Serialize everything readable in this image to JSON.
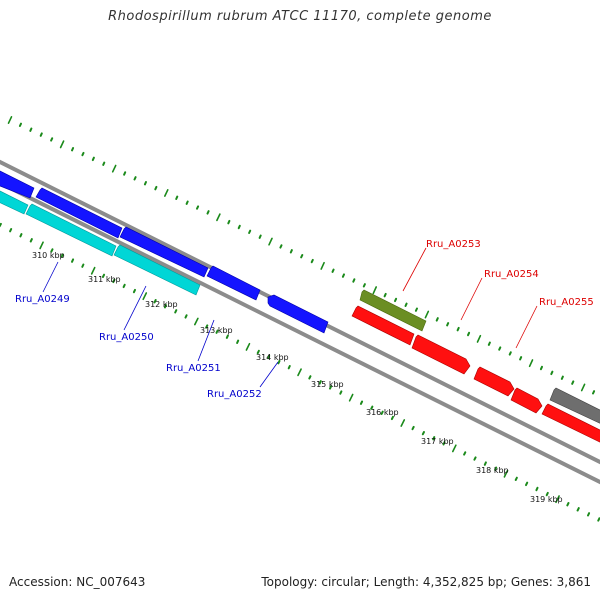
{
  "title": "Rhodospirillum rubrum ATCC 11170, complete genome",
  "footer": {
    "accession": "Accession: NC_007643",
    "summary": "Topology: circular; Length: 4,352,825 bp; Genes: 3,861"
  },
  "colors": {
    "forward": "#1414ff",
    "forward_rna": "#00d6d6",
    "reverse": "#ff1010",
    "olive": "#6b8e23",
    "gray_gene": "#6e6e6e",
    "backbone": "#8c8c8c",
    "ticks": "#1b8a1b",
    "label_forward": "#0000cc",
    "label_reverse": "#dd0000"
  },
  "kbp_ticks": [
    "310 kbp",
    "311 kbp",
    "312 kbp",
    "313 kbp",
    "314 kbp",
    "315 kbp",
    "316 kbp",
    "317 kbp",
    "318 kbp",
    "319 kbp"
  ],
  "gene_labels": [
    {
      "id": "Ru_A0249",
      "text": "Rru_A0249",
      "strand": "forward"
    },
    {
      "id": "Ru_A0250",
      "text": "Rru_A0250",
      "strand": "forward"
    },
    {
      "id": "Ru_A0251",
      "text": "Rru_A0251",
      "strand": "forward"
    },
    {
      "id": "Ru_A0252",
      "text": "Rru_A0252",
      "strand": "forward"
    },
    {
      "id": "Ru_A0253",
      "text": "Rru_A0253",
      "strand": "reverse"
    },
    {
      "id": "Ru_A0254",
      "text": "Rru_A0254",
      "strand": "reverse"
    },
    {
      "id": "Ru_A0255",
      "text": "Rru_A0255",
      "strand": "reverse"
    }
  ]
}
